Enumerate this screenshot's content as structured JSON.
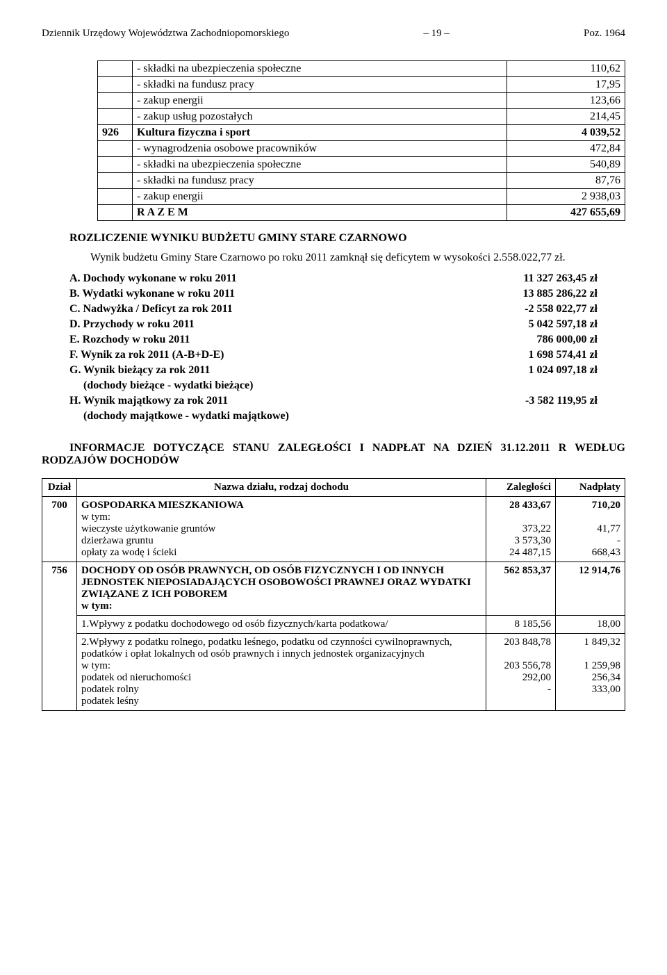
{
  "header": {
    "left": "Dziennik Urzędowy Województwa Zachodniopomorskiego",
    "page": "– 19 –",
    "right": "Poz. 1964"
  },
  "top_table": {
    "rows": [
      {
        "code": "",
        "desc": "- składki na ubezpieczenia społeczne",
        "val": "110,62",
        "bold": false
      },
      {
        "code": "",
        "desc": "- składki na fundusz pracy",
        "val": "17,95",
        "bold": false
      },
      {
        "code": "",
        "desc": "- zakup energii",
        "val": "123,66",
        "bold": false
      },
      {
        "code": "",
        "desc": "- zakup usług pozostałych",
        "val": "214,45",
        "bold": false
      },
      {
        "code": "926",
        "desc": "Kultura fizyczna i sport",
        "val": "4 039,52",
        "bold": true
      },
      {
        "code": "",
        "desc": "- wynagrodzenia osobowe pracowników",
        "val": "472,84",
        "bold": false
      },
      {
        "code": "",
        "desc": "- składki na ubezpieczenia społeczne",
        "val": "540,89",
        "bold": false
      },
      {
        "code": "",
        "desc": "- składki na fundusz pracy",
        "val": "87,76",
        "bold": false
      },
      {
        "code": "",
        "desc": "- zakup energii",
        "val": "2 938,03",
        "bold": false
      },
      {
        "code": "",
        "desc": "R A Z E M",
        "val": "427 655,69",
        "bold": true
      }
    ]
  },
  "rozliczenie_title": "ROZLICZENIE WYNIKU BUDŻETU GMINY STARE CZARNOWO",
  "rozliczenie_para": "Wynik budżetu Gminy Stare Czarnowo po roku 2011 zamknął się deficytem w wysokości 2.558.022,77 zł.",
  "items": [
    {
      "label": "A. Dochody wykonane w roku 2011",
      "value": "11 327 263,45 zł"
    },
    {
      "label": "B. Wydatki wykonane w roku 2011",
      "value": "13 885 286,22 zł"
    },
    {
      "label": "C. Nadwyżka / Deficyt za rok 2011",
      "value": "-2 558 022,77 zł"
    },
    {
      "label": "D. Przychody w roku 2011",
      "value": "5 042 597,18 zł"
    },
    {
      "label": "E. Rozchody w roku 2011",
      "value": "786 000,00 zł"
    },
    {
      "label": "F. Wynik za rok 2011 (A-B+D-E)",
      "value": "1 698 574,41 zł"
    },
    {
      "label": "G. Wynik bieżący za rok 2011",
      "value": "1 024 097,18 zł"
    }
  ],
  "sub_g": "(dochody bieżące - wydatki bieżące)",
  "item_h": {
    "label": "H. Wynik majątkowy za rok 2011",
    "value": "-3 582 119,95 zł"
  },
  "sub_h": "(dochody majątkowe - wydatki majątkowe)",
  "info_heading": "INFORMACJE DOTYCZĄCE STANU ZALEGŁOŚCI I NADPŁAT NA DZIEŃ 31.12.2011 R WEDŁUG RODZAJÓW DOCHODÓW",
  "zal_table": {
    "headers": {
      "dzial": "Dział",
      "name": "Nazwa działu, rodzaj dochodu",
      "zal": "Zaległości",
      "nad": "Nadpłaty"
    },
    "r700": {
      "dzial": "700",
      "title": "GOSPODARKA MIESZKANIOWA",
      "wtym": "w tym:",
      "lines": [
        {
          "desc": "wieczyste użytkowanie gruntów",
          "zal": "373,22",
          "nad": "41,77"
        },
        {
          "desc": "dzierżawa gruntu",
          "zal": "3 573,30",
          "nad": "-"
        },
        {
          "desc": "opłaty za wodę i ścieki",
          "zal": "24 487,15",
          "nad": "668,43"
        }
      ],
      "zal": "28 433,67",
      "nad": "710,20"
    },
    "r756": {
      "dzial": "756",
      "title": "DOCHODY OD OSÓB PRAWNYCH, OD OSÓB FIZYCZNYCH I OD INNYCH JEDNOSTEK NIEPOSIADAJĄCYCH OSOBOWOŚCI PRAWNEJ ORAZ WYDATKI ZWIĄZANE Z ICH POBOREM",
      "wtym": "w tym:",
      "zal": "562 853,37",
      "nad": "12 914,76",
      "sub1": {
        "desc": "1.Wpływy z podatku dochodowego od osób fizycznych/karta podatkowa/",
        "zal": "8 185,56",
        "nad": "18,00"
      },
      "sub2": {
        "desc": "2.Wpływy z podatku rolnego, podatku leśnego, podatku od czynności cywilnoprawnych, podatków i opłat lokalnych od osób prawnych i innych jednostek organizacyjnych",
        "wtym": "w tym:",
        "zal": "203 848,78",
        "nad": "1 849,32",
        "lines": [
          {
            "desc": "podatek od nieruchomości",
            "zal": "203 556,78",
            "nad": "1 259,98"
          },
          {
            "desc": "podatek rolny",
            "zal": "292,00",
            "nad": "256,34"
          },
          {
            "desc": "podatek leśny",
            "zal": "-",
            "nad": "333,00"
          }
        ]
      }
    }
  }
}
